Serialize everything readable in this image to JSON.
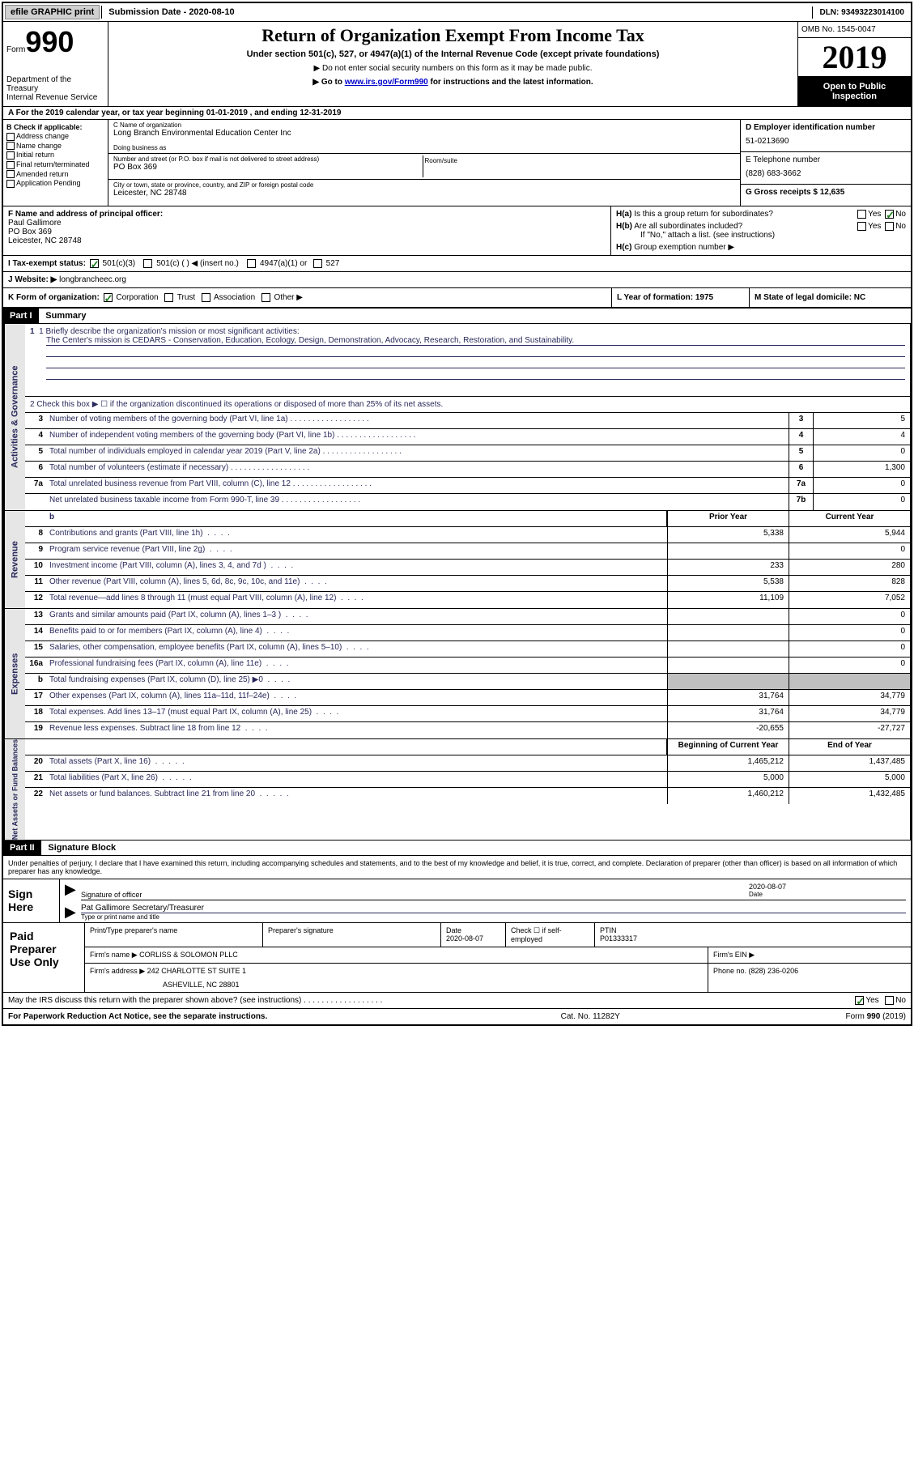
{
  "topbar": {
    "efile_label": "efile GRAPHIC print",
    "submission_label": "Submission Date - 2020-08-10",
    "dln_label": "DLN: 93493223014100"
  },
  "header": {
    "form_prefix": "Form",
    "form_number": "990",
    "dept": "Department of the Treasury\nInternal Revenue Service",
    "title": "Return of Organization Exempt From Income Tax",
    "subtitle": "Under section 501(c), 527, or 4947(a)(1) of the Internal Revenue Code (except private foundations)",
    "note1": "▶ Do not enter social security numbers on this form as it may be made public.",
    "note2_pre": "▶ Go to ",
    "note2_link": "www.irs.gov/Form990",
    "note2_post": " for instructions and the latest information.",
    "omb": "OMB No. 1545-0047",
    "year": "2019",
    "inspection": "Open to Public Inspection"
  },
  "row_a": {
    "text": "A For the 2019 calendar year, or tax year beginning 01-01-2019    , and ending 12-31-2019"
  },
  "section_b": {
    "b_label": "B Check if applicable:",
    "checks": [
      "Address change",
      "Name change",
      "Initial return",
      "Final return/terminated",
      "Amended return",
      "Application Pending"
    ],
    "c_label": "C Name of organization",
    "c_value": "Long Branch Environmental Education Center Inc",
    "dba_label": "Doing business as",
    "addr_label": "Number and street (or P.O. box if mail is not delivered to street address)",
    "addr_value": "PO Box 369",
    "room_label": "Room/suite",
    "city_label": "City or town, state or province, country, and ZIP or foreign postal code",
    "city_value": "Leicester, NC  28748",
    "d_label": "D Employer identification number",
    "d_value": "51-0213690",
    "e_label": "E Telephone number",
    "e_value": "(828) 683-3662",
    "g_label": "G Gross receipts $ 12,635"
  },
  "section_f": {
    "f_label": "F  Name and address of principal officer:",
    "f_name": "Paul Gallimore",
    "f_addr1": "PO Box 369",
    "f_addr2": "Leicester, NC  28748",
    "ha_label": "H(a)  Is this a group return for subordinates?",
    "hb_label": "H(b)  Are all subordinates included?",
    "hb_note": "If \"No,\" attach a list. (see instructions)",
    "hc_label": "H(c)  Group exemption number ▶",
    "yes": "Yes",
    "no": "No"
  },
  "row_i": {
    "label": "I    Tax-exempt status:",
    "opt1": "501(c)(3)",
    "opt2": "501(c) (  ) ◀ (insert no.)",
    "opt3": "4947(a)(1) or",
    "opt4": "527"
  },
  "row_j": {
    "label": "J   Website: ▶",
    "value": "longbrancheec.org"
  },
  "row_k": {
    "k_label": "K Form of organization:",
    "k_opts": [
      "Corporation",
      "Trust",
      "Association",
      "Other ▶"
    ],
    "l_label": "L Year of formation: 1975",
    "m_label": "M State of legal domicile: NC"
  },
  "part1": {
    "header": "Part I",
    "title": "Summary",
    "line1_label": "1  Briefly describe the organization's mission or most significant activities:",
    "line1_value": "The Center's mission is CEDARS - Conservation, Education, Ecology, Design, Demonstration, Advocacy, Research, Restoration, and Sustainability.",
    "line2": "2   Check this box ▶ ☐  if the organization discontinued its operations or disposed of more than 25% of its net assets.",
    "rows_ag": [
      {
        "n": "3",
        "d": "Number of voting members of the governing body (Part VI, line 1a)",
        "box": "3",
        "v": "5"
      },
      {
        "n": "4",
        "d": "Number of independent voting members of the governing body (Part VI, line 1b)",
        "box": "4",
        "v": "4"
      },
      {
        "n": "5",
        "d": "Total number of individuals employed in calendar year 2019 (Part V, line 2a)",
        "box": "5",
        "v": "0"
      },
      {
        "n": "6",
        "d": "Total number of volunteers (estimate if necessary)",
        "box": "6",
        "v": "1,300"
      },
      {
        "n": "7a",
        "d": "Total unrelated business revenue from Part VIII, column (C), line 12",
        "box": "7a",
        "v": "0"
      },
      {
        "n": "",
        "d": "Net unrelated business taxable income from Form 990-T, line 39",
        "box": "7b",
        "v": "0"
      }
    ],
    "col_prior": "Prior Year",
    "col_current": "Current Year",
    "rows_rev": [
      {
        "n": "8",
        "d": "Contributions and grants (Part VIII, line 1h)",
        "p": "5,338",
        "c": "5,944"
      },
      {
        "n": "9",
        "d": "Program service revenue (Part VIII, line 2g)",
        "p": "",
        "c": "0"
      },
      {
        "n": "10",
        "d": "Investment income (Part VIII, column (A), lines 3, 4, and 7d )",
        "p": "233",
        "c": "280"
      },
      {
        "n": "11",
        "d": "Other revenue (Part VIII, column (A), lines 5, 6d, 8c, 9c, 10c, and 11e)",
        "p": "5,538",
        "c": "828"
      },
      {
        "n": "12",
        "d": "Total revenue—add lines 8 through 11 (must equal Part VIII, column (A), line 12)",
        "p": "11,109",
        "c": "7,052"
      }
    ],
    "rows_exp": [
      {
        "n": "13",
        "d": "Grants and similar amounts paid (Part IX, column (A), lines 1–3 )",
        "p": "",
        "c": "0"
      },
      {
        "n": "14",
        "d": "Benefits paid to or for members (Part IX, column (A), line 4)",
        "p": "",
        "c": "0"
      },
      {
        "n": "15",
        "d": "Salaries, other compensation, employee benefits (Part IX, column (A), lines 5–10)",
        "p": "",
        "c": "0"
      },
      {
        "n": "16a",
        "d": "Professional fundraising fees (Part IX, column (A), line 11e)",
        "p": "",
        "c": "0"
      },
      {
        "n": "b",
        "d": "Total fundraising expenses (Part IX, column (D), line 25) ▶0",
        "p": "gray",
        "c": "gray"
      },
      {
        "n": "17",
        "d": "Other expenses (Part IX, column (A), lines 11a–11d, 11f–24e)",
        "p": "31,764",
        "c": "34,779"
      },
      {
        "n": "18",
        "d": "Total expenses. Add lines 13–17 (must equal Part IX, column (A), line 25)",
        "p": "31,764",
        "c": "34,779"
      },
      {
        "n": "19",
        "d": "Revenue less expenses. Subtract line 18 from line 12",
        "p": "-20,655",
        "c": "-27,727"
      }
    ],
    "col_begin": "Beginning of Current Year",
    "col_end": "End of Year",
    "rows_net": [
      {
        "n": "20",
        "d": "Total assets (Part X, line 16)",
        "p": "1,465,212",
        "c": "1,437,485"
      },
      {
        "n": "21",
        "d": "Total liabilities (Part X, line 26)",
        "p": "5,000",
        "c": "5,000"
      },
      {
        "n": "22",
        "d": "Net assets or fund balances. Subtract line 21 from line 20",
        "p": "1,460,212",
        "c": "1,432,485"
      }
    ],
    "side_ag": "Activities & Governance",
    "side_rev": "Revenue",
    "side_exp": "Expenses",
    "side_net": "Net Assets or Fund Balances"
  },
  "part2": {
    "header": "Part II",
    "title": "Signature Block",
    "penalty": "Under penalties of perjury, I declare that I have examined this return, including accompanying schedules and statements, and to the best of my knowledge and belief, it is true, correct, and complete. Declaration of preparer (other than officer) is based on all information of which preparer has any knowledge.",
    "sign_here": "Sign Here",
    "sig_officer": "Signature of officer",
    "sig_date": "2020-08-07",
    "date_label": "Date",
    "sig_name": "Pat Gallimore  Secretary/Treasurer",
    "sig_name_label": "Type or print name and title",
    "paid_label": "Paid Preparer Use Only",
    "prep_name_label": "Print/Type preparer's name",
    "prep_sig_label": "Preparer's signature",
    "prep_date_label": "Date",
    "prep_date": "2020-08-07",
    "prep_check_label": "Check ☐ if self-employed",
    "ptin_label": "PTIN",
    "ptin": "P01333317",
    "firm_name_label": "Firm's name     ▶",
    "firm_name": "CORLISS & SOLOMON PLLC",
    "firm_ein_label": "Firm's EIN ▶",
    "firm_addr_label": "Firm's address ▶",
    "firm_addr1": "242 CHARLOTTE ST SUITE 1",
    "firm_addr2": "ASHEVILLE, NC  28801",
    "firm_phone_label": "Phone no. (828) 236-0206",
    "discuss": "May the IRS discuss this return with the preparer shown above? (see instructions)",
    "discuss_yes": "Yes",
    "discuss_no": "No"
  },
  "footer": {
    "left": "For Paperwork Reduction Act Notice, see the separate instructions.",
    "mid": "Cat. No. 11282Y",
    "right": "Form 990 (2019)"
  }
}
